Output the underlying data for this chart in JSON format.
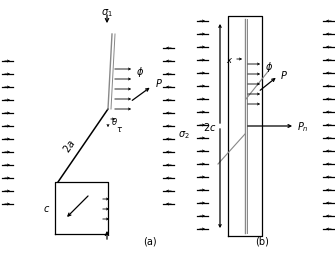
{
  "fig_width": 3.35,
  "fig_height": 2.55,
  "dpi": 100,
  "bg_color": "#ffffff",
  "line_color": "#000000",
  "gray_color": "#888888"
}
